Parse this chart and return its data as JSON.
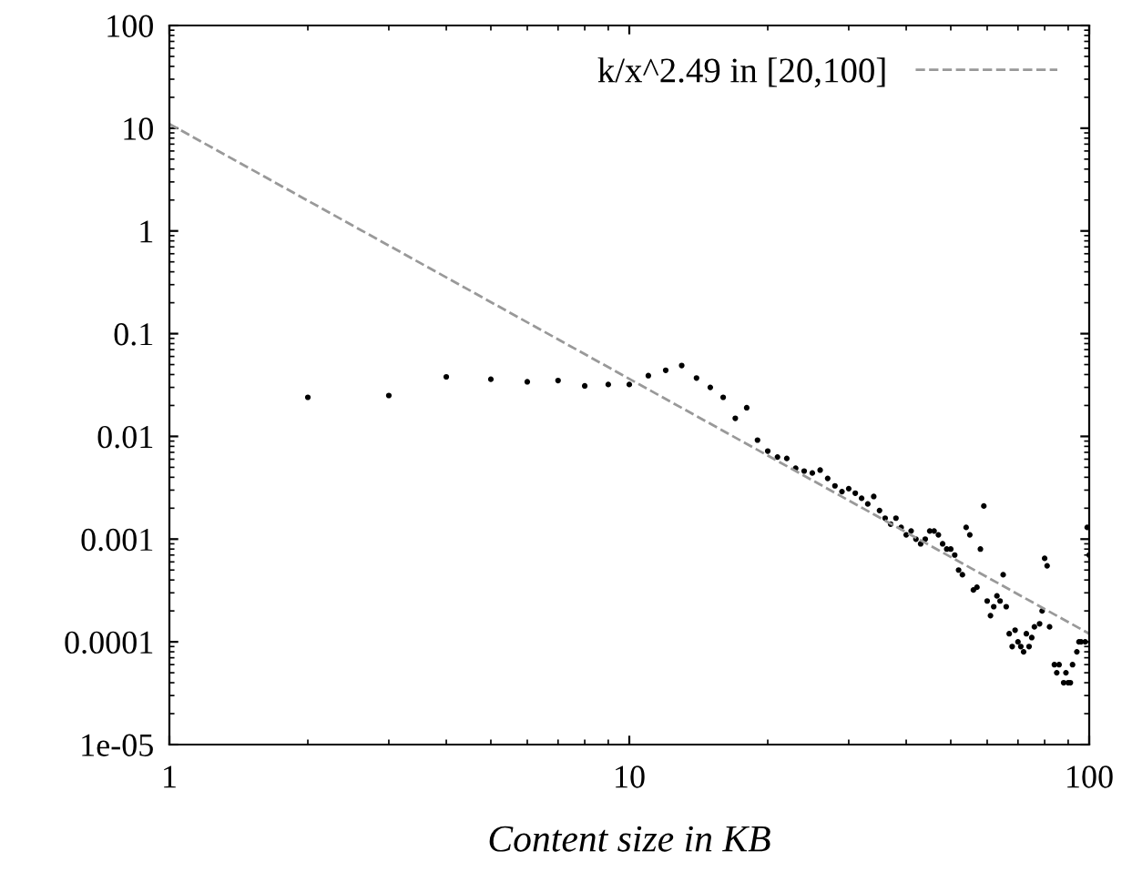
{
  "chart_data": {
    "type": "scatter",
    "xlabel": "Content size in KB",
    "log": "xy",
    "xlim": [
      1,
      100
    ],
    "ylim": [
      1e-05,
      100
    ],
    "xticks": [
      1,
      10,
      100
    ],
    "yticks": [
      {
        "value": 1e-05,
        "label": "1e-05"
      },
      0.0001,
      0.001,
      0.01,
      0.1,
      1,
      10,
      100
    ],
    "grid": false,
    "legend": "top right",
    "marker": "circle",
    "series": [
      {
        "color": "#000000",
        "x": [
          2,
          3,
          4,
          5,
          6,
          7,
          8,
          9,
          10,
          11,
          12,
          13,
          14,
          15,
          16,
          17,
          18,
          19,
          20,
          21,
          22,
          23,
          24,
          25,
          26,
          27,
          28,
          29,
          30,
          31,
          32,
          33,
          34,
          35,
          36,
          37,
          38,
          39,
          40,
          41,
          42,
          43,
          44,
          45,
          46,
          47,
          48,
          49,
          50,
          51,
          52,
          53,
          54,
          55,
          56,
          57,
          58,
          59,
          60,
          61,
          62,
          63,
          64,
          65,
          66,
          67,
          68,
          69,
          70,
          71,
          72,
          73,
          74,
          75,
          76,
          78,
          79,
          80,
          81,
          82,
          84,
          85,
          86,
          88,
          89,
          90,
          91,
          92,
          94,
          95,
          96,
          98,
          99,
          100
        ],
        "values": [
          0.024,
          0.025,
          0.038,
          0.036,
          0.034,
          0.035,
          0.031,
          0.032,
          0.032,
          0.039,
          0.044,
          0.049,
          0.037,
          0.03,
          0.024,
          0.015,
          0.019,
          0.0092,
          0.0072,
          0.0063,
          0.0061,
          0.0049,
          0.0046,
          0.0044,
          0.0047,
          0.0039,
          0.0033,
          0.0029,
          0.0031,
          0.0028,
          0.0025,
          0.0022,
          0.0026,
          0.0019,
          0.0016,
          0.0014,
          0.0016,
          0.0013,
          0.0011,
          0.0012,
          0.001,
          0.0009,
          0.001,
          0.0012,
          0.0012,
          0.0011,
          0.0009,
          0.0008,
          0.0008,
          0.0007,
          0.0005,
          0.00045,
          0.0013,
          0.0011,
          0.00032,
          0.00034,
          0.0008,
          0.0021,
          0.00025,
          0.00018,
          0.00022,
          0.00028,
          0.00025,
          0.00045,
          0.00022,
          0.00012,
          9e-05,
          0.00013,
          0.0001,
          9e-05,
          8e-05,
          0.00012,
          9e-05,
          0.00011,
          0.00014,
          0.00015,
          0.0002,
          0.00065,
          0.00055,
          0.00014,
          6e-05,
          5e-05,
          6e-05,
          4e-05,
          5e-05,
          4e-05,
          4e-05,
          6e-05,
          8e-05,
          0.0001,
          0.0001,
          0.0001,
          0.0013,
          0.0007
        ]
      },
      {
        "type": "line",
        "name": "k/x^2.49 in [20,100]",
        "color": "#999999",
        "line_style": "dashed",
        "marker": "none",
        "x": [
          1,
          100
        ],
        "values": [
          11,
          0.00012
        ]
      }
    ]
  }
}
